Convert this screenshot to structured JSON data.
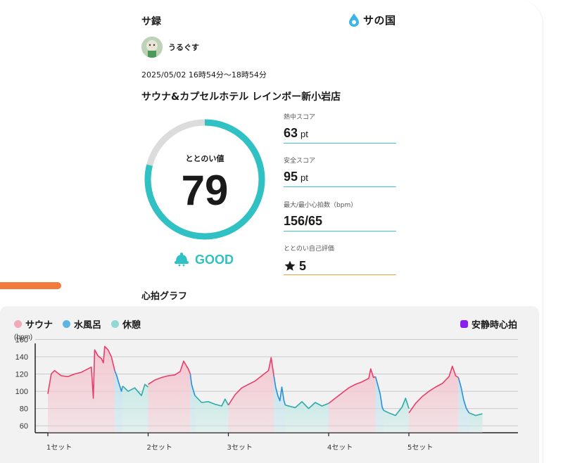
{
  "header": {
    "title": "サ録",
    "brand": "サの国"
  },
  "user": {
    "name": "うるぐす"
  },
  "session": {
    "datetime": "2025/05/02 16時54分〜18時54分",
    "facility": "サウナ&カプセルホテル レインボー新小岩店"
  },
  "score": {
    "label": "ととのい値",
    "value": "79",
    "fraction": 0.79,
    "rating": "GOOD"
  },
  "stats": [
    {
      "label": "熱中スコア",
      "value": "63",
      "unit": "pt"
    },
    {
      "label": "安全スコア",
      "value": "95",
      "unit": "pt"
    },
    {
      "label": "最大/最小心拍数（bpm）",
      "value": "156/65",
      "unit": ""
    },
    {
      "label": "ととのい自己評価",
      "value": "5",
      "unit": "",
      "icon": "star-icon"
    }
  ],
  "graph": {
    "title": "心拍グラフ"
  },
  "colors": {
    "sauna": "#e73e6a",
    "sauna_fill": "#f3c6cf",
    "cold": "#2b8fd8",
    "cold_fill": "#bfe3ee",
    "rest": "#2eaaa9",
    "rest_fill": "#c8eae6",
    "resting": "#8a1ff0",
    "gauge": "#2fc1c3",
    "gauge_track": "#dcdcdc"
  },
  "chart_data": {
    "type": "line",
    "ylabel": "(bpm)",
    "yticks": [
      60,
      80,
      100,
      120,
      140,
      160
    ],
    "ylim": [
      52,
      162
    ],
    "xlim": [
      0,
      68
    ],
    "grid": true,
    "legend_placement": "top",
    "legend": [
      {
        "name": "サウナ",
        "key": "sauna"
      },
      {
        "name": "水風呂",
        "key": "cold"
      },
      {
        "name": "休憩",
        "key": "rest"
      },
      {
        "name": "安静時心拍",
        "key": "resting"
      }
    ],
    "xticks": [
      {
        "x": 0,
        "label": "1セット"
      },
      {
        "x": 15,
        "label": "2セット"
      },
      {
        "x": 27,
        "label": "3セット"
      },
      {
        "x": 42,
        "label": "4セット"
      },
      {
        "x": 54,
        "label": "5セット"
      }
    ],
    "segments": [
      {
        "phase": "sauna",
        "points": [
          [
            0,
            97
          ],
          [
            0.5,
            120
          ],
          [
            1,
            124
          ],
          [
            2,
            118
          ],
          [
            3,
            117
          ],
          [
            4,
            120
          ],
          [
            5,
            122
          ],
          [
            6,
            126
          ],
          [
            6.5,
            128
          ],
          [
            6.8,
            92
          ],
          [
            7,
            148
          ],
          [
            7.5,
            141
          ],
          [
            8,
            138
          ],
          [
            8.3,
            133
          ],
          [
            8.5,
            152
          ],
          [
            9,
            148
          ],
          [
            9.5,
            140
          ],
          [
            10,
            124
          ]
        ]
      },
      {
        "phase": "cold",
        "points": [
          [
            10,
            124
          ],
          [
            10.3,
            118
          ],
          [
            10.6,
            110
          ],
          [
            11,
            100
          ],
          [
            11.2,
            106
          ]
        ]
      },
      {
        "phase": "rest",
        "points": [
          [
            11.2,
            106
          ],
          [
            12,
            100
          ],
          [
            13,
            104
          ],
          [
            14,
            95
          ],
          [
            14.5,
            108
          ],
          [
            15,
            105
          ]
        ]
      },
      {
        "phase": "sauna",
        "points": [
          [
            15,
            108
          ],
          [
            16,
            113
          ],
          [
            17,
            116
          ],
          [
            18,
            118
          ],
          [
            19,
            119
          ],
          [
            19.8,
            123
          ],
          [
            20.3,
            135
          ],
          [
            21,
            126
          ],
          [
            21.3,
            120
          ]
        ]
      },
      {
        "phase": "cold",
        "points": [
          [
            21.3,
            120
          ],
          [
            21.5,
            108
          ],
          [
            21.8,
            100
          ],
          [
            22,
            95
          ]
        ]
      },
      {
        "phase": "rest",
        "points": [
          [
            22,
            95
          ],
          [
            23,
            87
          ],
          [
            24,
            88
          ],
          [
            25,
            85
          ],
          [
            26,
            83
          ],
          [
            26.5,
            91
          ],
          [
            27,
            84
          ]
        ]
      },
      {
        "phase": "sauna",
        "points": [
          [
            27,
            84
          ],
          [
            28,
            96
          ],
          [
            29,
            104
          ],
          [
            30,
            108
          ],
          [
            31,
            112
          ],
          [
            32,
            118
          ],
          [
            33,
            124
          ],
          [
            33.4,
            139
          ],
          [
            33.8,
            118
          ]
        ]
      },
      {
        "phase": "cold",
        "points": [
          [
            33.8,
            118
          ],
          [
            34.1,
            104
          ],
          [
            34.4,
            95
          ],
          [
            34.7,
            89
          ],
          [
            35,
            105
          ],
          [
            35.3,
            90
          ],
          [
            35.5,
            84
          ]
        ]
      },
      {
        "phase": "rest",
        "points": [
          [
            35.5,
            84
          ],
          [
            37,
            81
          ],
          [
            38,
            88
          ],
          [
            39,
            80
          ],
          [
            40,
            87
          ],
          [
            41,
            83
          ],
          [
            42,
            86
          ]
        ]
      },
      {
        "phase": "sauna",
        "points": [
          [
            42,
            86
          ],
          [
            43,
            92
          ],
          [
            44,
            98
          ],
          [
            45,
            104
          ],
          [
            46,
            108
          ],
          [
            47,
            111
          ],
          [
            48,
            115
          ],
          [
            48.3,
            126
          ],
          [
            48.7,
            116
          ],
          [
            49,
            117
          ]
        ]
      },
      {
        "phase": "cold",
        "points": [
          [
            49,
            117
          ],
          [
            49.3,
            109
          ],
          [
            49.7,
            97
          ],
          [
            50,
            82
          ],
          [
            50.2,
            78
          ]
        ]
      },
      {
        "phase": "rest",
        "points": [
          [
            50.2,
            78
          ],
          [
            51,
            75
          ],
          [
            52,
            72
          ],
          [
            53,
            82
          ],
          [
            53.5,
            92
          ],
          [
            54,
            80
          ]
        ]
      },
      {
        "phase": "sauna",
        "points": [
          [
            54,
            75
          ],
          [
            55,
            86
          ],
          [
            56,
            94
          ],
          [
            57,
            100
          ],
          [
            58,
            105
          ],
          [
            59,
            109
          ],
          [
            60,
            117
          ],
          [
            60.5,
            129
          ],
          [
            61,
            118
          ],
          [
            61.4,
            116
          ]
        ]
      },
      {
        "phase": "cold",
        "points": [
          [
            61.4,
            116
          ],
          [
            61.8,
            105
          ],
          [
            62.2,
            90
          ],
          [
            62.6,
            80
          ],
          [
            63,
            75
          ]
        ]
      },
      {
        "phase": "rest",
        "points": [
          [
            63,
            75
          ],
          [
            64,
            72
          ],
          [
            65,
            74
          ]
        ]
      }
    ]
  }
}
